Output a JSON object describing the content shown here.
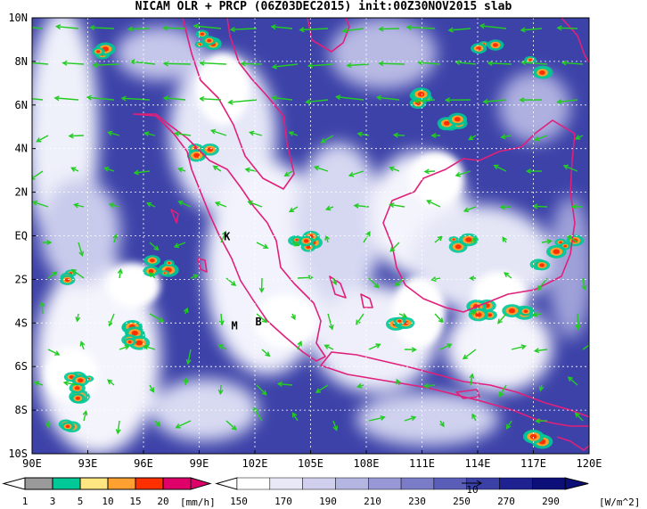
{
  "title": "NICAM OLR + PRCP (06Z03DEC2015) init:00Z30NOV2015 slab",
  "map": {
    "lat_labels": [
      "10N",
      "8N",
      "6N",
      "4N",
      "2N",
      "EQ",
      "2S",
      "4S",
      "6S",
      "8S",
      "10S"
    ],
    "lon_labels": [
      "90E",
      "93E",
      "96E",
      "99E",
      "102E",
      "105E",
      "108E",
      "111E",
      "114E",
      "117E",
      "120E"
    ],
    "lat_range": [
      -10,
      10
    ],
    "lon_range": [
      90,
      120
    ],
    "markers": [
      {
        "text": "K",
        "lon": 100.5,
        "lat": 0.0
      },
      {
        "text": "M",
        "lon": 100.9,
        "lat": -4.1
      },
      {
        "text": "B",
        "lon": 102.2,
        "lat": -3.9
      }
    ],
    "colors": {
      "coastline": "#e0207a",
      "wind_arrow": "#22cc22",
      "grid": "#ffffff"
    }
  },
  "precip_colorbar": {
    "labels": [
      "1",
      "3",
      "5",
      "10",
      "15",
      "20"
    ],
    "unit": "[mm/h]",
    "colors": [
      "#9a9a9a",
      "#00c896",
      "#ffe680",
      "#ffa030",
      "#ff3000",
      "#e0006a"
    ]
  },
  "olr_colorbar": {
    "labels": [
      "150",
      "170",
      "190",
      "210",
      "230",
      "250",
      "270",
      "290"
    ],
    "unit": "[W/m^2]",
    "colors": [
      "#ffffff",
      "#e8e8f6",
      "#d0d0ee",
      "#b4b6e2",
      "#9898d6",
      "#7a7cc8",
      "#5a5eb8",
      "#3a40a6",
      "#1e2290",
      "#0c0f78"
    ],
    "reference_vector_label": "10"
  }
}
